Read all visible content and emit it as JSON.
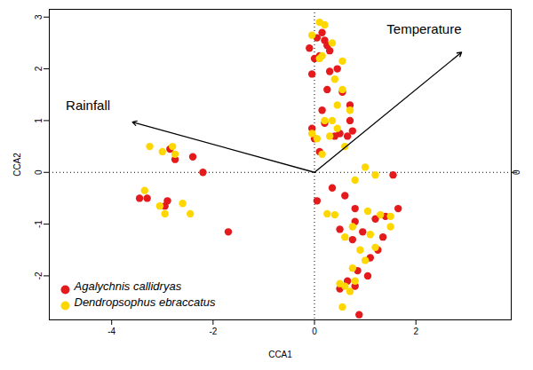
{
  "chart_data": {
    "type": "scatter",
    "x_label": "CCA1",
    "y_label": "CCA2",
    "xlim": [
      -5.23,
      3.88
    ],
    "ylim": [
      -2.85,
      3.15
    ],
    "xticks": [
      -4,
      -2,
      0,
      2
    ],
    "yticks": [
      -2,
      -1,
      0,
      1,
      2,
      3
    ],
    "y2ticks": [
      0
    ],
    "legend": "bottom-left",
    "arrows": [
      {
        "label": "Rainfall",
        "x": -3.59,
        "y": 0.97
      },
      {
        "label": "Temperature",
        "x": 2.9,
        "y": 2.32
      }
    ],
    "series": [
      {
        "name": "Agalychnis callidryas",
        "color": "#e41a1c",
        "marker": "circle",
        "values": [
          [
            -3.45,
            -0.5
          ],
          [
            -3.3,
            -0.5
          ],
          [
            -2.85,
            0.45
          ],
          [
            -2.75,
            0.25
          ],
          [
            -2.4,
            0.3
          ],
          [
            -2.2,
            0.0
          ],
          [
            -2.95,
            -0.65
          ],
          [
            -2.9,
            -0.55
          ],
          [
            -1.7,
            -1.15
          ],
          [
            0.05,
            2.6
          ],
          [
            0.15,
            2.7
          ],
          [
            0.2,
            2.55
          ],
          [
            0.25,
            2.45
          ],
          [
            0.3,
            2.35
          ],
          [
            -0.1,
            2.4
          ],
          [
            0.0,
            2.2
          ],
          [
            -0.05,
            1.9
          ],
          [
            0.1,
            2.25
          ],
          [
            0.3,
            1.95
          ],
          [
            0.45,
            2.0
          ],
          [
            0.55,
            1.55
          ],
          [
            0.25,
            1.6
          ],
          [
            0.7,
            1.3
          ],
          [
            0.15,
            1.2
          ],
          [
            0.5,
            0.75
          ],
          [
            0.4,
            0.7
          ],
          [
            0.2,
            0.95
          ],
          [
            -0.05,
            0.85
          ],
          [
            0.0,
            0.65
          ],
          [
            0.1,
            0.4
          ],
          [
            0.75,
            0.8
          ],
          [
            0.65,
            0.7
          ],
          [
            0.7,
            1.0
          ],
          [
            0.05,
            -0.55
          ],
          [
            0.35,
            -0.3
          ],
          [
            0.6,
            -0.45
          ],
          [
            1.55,
            -0.05
          ],
          [
            1.65,
            -0.7
          ],
          [
            1.2,
            -0.9
          ],
          [
            1.4,
            -0.85
          ],
          [
            0.8,
            -0.7
          ],
          [
            0.8,
            -0.95
          ],
          [
            0.5,
            -1.1
          ],
          [
            0.75,
            -1.3
          ],
          [
            0.95,
            -1.15
          ],
          [
            1.25,
            -1.5
          ],
          [
            1.1,
            -1.65
          ],
          [
            0.85,
            -1.9
          ],
          [
            0.65,
            -2.1
          ],
          [
            0.5,
            -2.25
          ],
          [
            0.8,
            -2.2
          ],
          [
            1.05,
            -2.0
          ],
          [
            0.88,
            -2.75
          ],
          [
            1.35,
            -1.25
          ]
        ]
      },
      {
        "name": "Dendropsophus ebraccatus",
        "color": "#ffd700",
        "marker": "circle",
        "values": [
          [
            -3.25,
            0.5
          ],
          [
            -3.0,
            0.4
          ],
          [
            -2.8,
            0.5
          ],
          [
            -3.35,
            -0.35
          ],
          [
            -3.05,
            -0.65
          ],
          [
            -2.6,
            -0.6
          ],
          [
            -2.95,
            -0.8
          ],
          [
            -2.45,
            -0.8
          ],
          [
            -2.75,
            0.35
          ],
          [
            0.1,
            2.9
          ],
          [
            -0.05,
            2.65
          ],
          [
            0.2,
            2.85
          ],
          [
            0.35,
            2.5
          ],
          [
            0.1,
            2.2
          ],
          [
            0.15,
            2.25
          ],
          [
            0.55,
            2.15
          ],
          [
            0.4,
            1.8
          ],
          [
            0.55,
            1.6
          ],
          [
            0.7,
            1.2
          ],
          [
            0.35,
            1.0
          ],
          [
            0.45,
            1.3
          ],
          [
            -0.05,
            0.75
          ],
          [
            0.05,
            0.65
          ],
          [
            0.15,
            0.35
          ],
          [
            0.6,
            0.5
          ],
          [
            0.3,
            0.7
          ],
          [
            0.2,
            1.0
          ],
          [
            0.45,
            0.85
          ],
          [
            1.0,
            0.1
          ],
          [
            1.2,
            -0.05
          ],
          [
            0.8,
            -0.15
          ],
          [
            0.25,
            -0.8
          ],
          [
            0.4,
            -0.82
          ],
          [
            1.05,
            -0.75
          ],
          [
            1.3,
            -0.82
          ],
          [
            1.5,
            -0.85
          ],
          [
            1.5,
            -1.05
          ],
          [
            1.1,
            -1.2
          ],
          [
            0.75,
            -1.05
          ],
          [
            0.6,
            -1.25
          ],
          [
            0.9,
            -1.5
          ],
          [
            1.2,
            -1.45
          ],
          [
            0.75,
            -1.85
          ],
          [
            0.6,
            -2.2
          ],
          [
            0.7,
            -2.3
          ],
          [
            0.5,
            -2.15
          ],
          [
            0.8,
            -2.1
          ],
          [
            0.55,
            -2.6
          ],
          [
            1.0,
            -1.7
          ]
        ]
      }
    ]
  }
}
